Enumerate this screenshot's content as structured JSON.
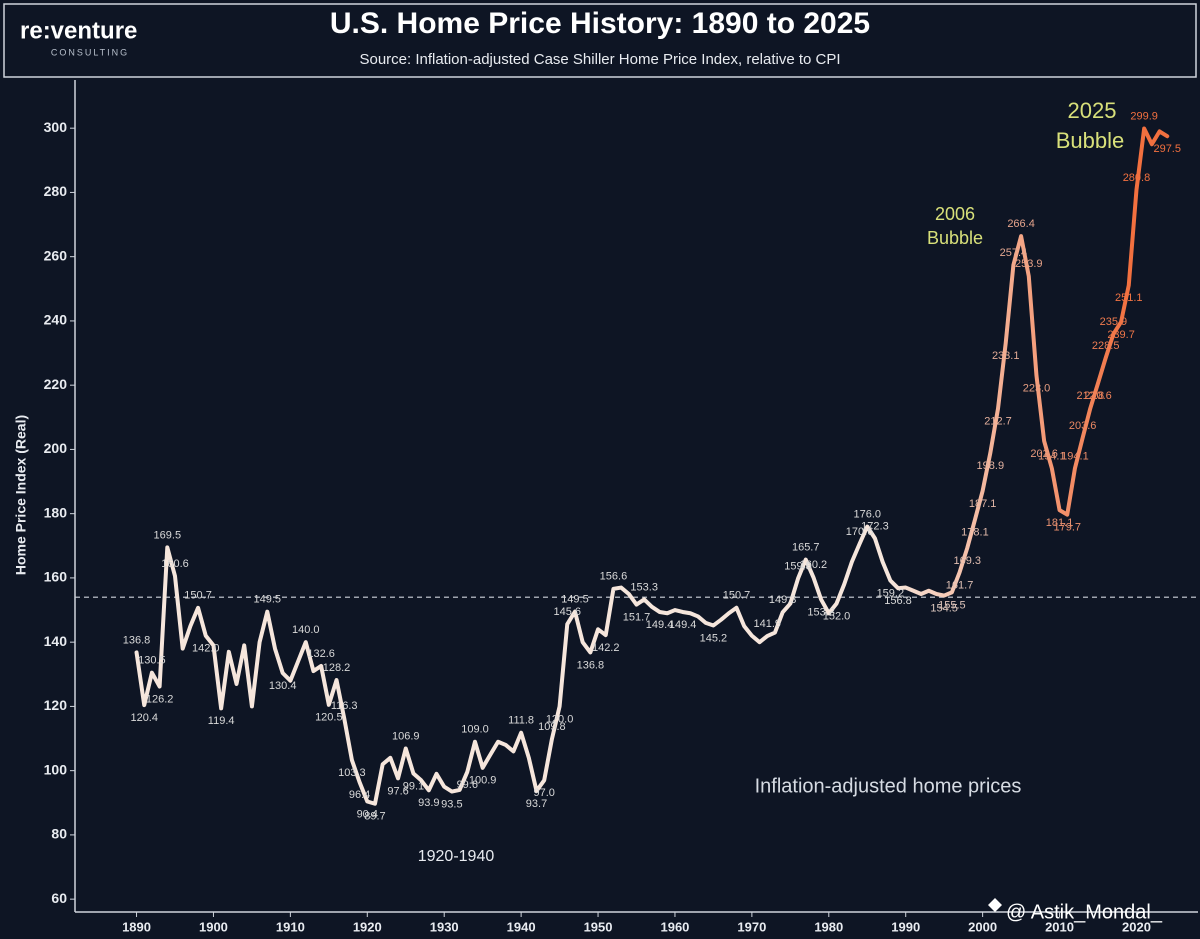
{
  "chart_data": {
    "type": "line",
    "title": "U.S. Home Price History: 1890 to 2025",
    "subtitle": "Source: Inflation-adjusted Case Shiller Home Price Index, relative to CPI",
    "brand": "re:venture",
    "brand_sub": "CONSULTING",
    "y_label": "Home Price Index (Real)",
    "watermark": "@ Astik_Mondal_",
    "annotations": {
      "bubble_2006": [
        "2006",
        "Bubble"
      ],
      "bubble_2025": [
        "2025",
        "Bubble"
      ],
      "era": "1920-1940",
      "series_label": "Inflation-adjusted home prices"
    },
    "line_colors": [
      "#f6e6dc",
      "#f2703f"
    ],
    "reference_line": 154,
    "xlim": [
      1882,
      2028
    ],
    "xticks": [
      1890,
      1900,
      1910,
      1920,
      1930,
      1940,
      1950,
      1960,
      1970,
      1980,
      1990,
      2000,
      2010,
      2020
    ],
    "ylim": [
      56,
      315
    ],
    "yticks": [
      60,
      80,
      100,
      120,
      140,
      160,
      180,
      200,
      220,
      240,
      260,
      280,
      300
    ],
    "x": [
      1890,
      1891,
      1892,
      1893,
      1894,
      1895,
      1896,
      1897,
      1898,
      1899,
      1900,
      1901,
      1902,
      1903,
      1904,
      1905,
      1906,
      1907,
      1908,
      1909,
      1910,
      1911,
      1912,
      1913,
      1914,
      1915,
      1916,
      1917,
      1918,
      1919,
      1920,
      1921,
      1922,
      1923,
      1924,
      1925,
      1926,
      1927,
      1928,
      1929,
      1930,
      1931,
      1932,
      1933,
      1934,
      1935,
      1936,
      1937,
      1938,
      1939,
      1940,
      1941,
      1942,
      1943,
      1944,
      1945,
      1946,
      1947,
      1948,
      1949,
      1950,
      1951,
      1952,
      1953,
      1954,
      1955,
      1956,
      1957,
      1958,
      1959,
      1960,
      1961,
      1962,
      1963,
      1964,
      1965,
      1966,
      1967,
      1968,
      1969,
      1970,
      1971,
      1972,
      1973,
      1974,
      1975,
      1976,
      1977,
      1978,
      1979,
      1980,
      1981,
      1982,
      1983,
      1984,
      1985,
      1986,
      1987,
      1988,
      1989,
      1990,
      1991,
      1992,
      1993,
      1994,
      1995,
      1996,
      1997,
      1998,
      1999,
      2000,
      2001,
      2002,
      2003,
      2004,
      2005,
      2006,
      2007,
      2008,
      2009,
      2010,
      2011,
      2012,
      2013,
      2014,
      2015,
      2016,
      2017,
      2018,
      2019,
      2020,
      2021,
      2022,
      2023,
      2024
    ],
    "values": [
      136.8,
      120.4,
      130.5,
      126.2,
      169.5,
      160.6,
      138,
      145,
      150.7,
      142.0,
      139,
      119.4,
      137,
      127,
      139,
      120,
      140,
      149.5,
      138,
      130.4,
      128,
      134,
      140.0,
      131,
      132.6,
      120.5,
      128.2,
      116.3,
      103.3,
      96.4,
      90.4,
      89.7,
      102,
      104,
      97.6,
      106.9,
      99.1,
      97,
      93.9,
      99,
      95,
      93.5,
      94,
      99.6,
      109.0,
      100.9,
      105,
      109,
      108,
      106,
      111.8,
      104,
      93.7,
      97.0,
      109.8,
      120.0,
      145.6,
      149.5,
      140,
      136.8,
      144,
      142.2,
      156.6,
      157,
      155,
      151.7,
      153.3,
      151,
      149.4,
      149,
      150,
      149.4,
      149,
      148,
      146,
      145.2,
      147,
      149,
      150.7,
      145,
      142,
      140,
      141.9,
      143,
      149.3,
      152,
      159.8,
      165.7,
      160.2,
      153.3,
      149,
      152.0,
      158,
      165,
      170.6,
      176.0,
      172.3,
      165,
      159.2,
      156.8,
      157,
      156,
      155,
      156,
      155,
      154.5,
      155.5,
      161.7,
      169.3,
      178.1,
      187.1,
      198.9,
      212.7,
      233.1,
      257.4,
      266.4,
      253.9,
      223.0,
      202.6,
      194.1,
      181.1,
      179.7,
      194.1,
      203.6,
      212.8,
      220.6,
      228.5,
      235.9,
      239.7,
      251.1,
      280.8,
      299.9,
      295,
      299,
      297.5
    ],
    "value_labels": [
      "136.8",
      "120.4",
      "130.5",
      "126.2",
      "169.5",
      "160.6",
      null,
      null,
      "150.7",
      "142.0",
      null,
      "119.4",
      null,
      null,
      null,
      null,
      null,
      "149.5",
      null,
      "130.4",
      null,
      null,
      "140.0",
      null,
      "132.6",
      "120.5",
      "128.2",
      "116.3",
      "103.3",
      "96.4",
      "90.4",
      "89.7",
      null,
      null,
      "97.6",
      "106.9",
      "99.1",
      null,
      "93.9",
      null,
      null,
      "93.5",
      null,
      "99.6",
      "109.0",
      "100.9",
      null,
      null,
      null,
      null,
      "111.8",
      null,
      "93.7",
      "97.0",
      "109.8",
      "120.0",
      "145.6",
      "149.5",
      null,
      "136.8",
      null,
      "142.2",
      "156.6",
      null,
      null,
      "151.7",
      "153.3",
      null,
      "149.4",
      null,
      null,
      "149.4",
      null,
      null,
      null,
      "145.2",
      null,
      null,
      "150.7",
      null,
      null,
      null,
      "141.9",
      null,
      "149.3",
      null,
      "159.8",
      "165.7",
      "160.2",
      "153.3",
      null,
      "152.0",
      null,
      null,
      "170.6",
      "176.0",
      "172.3",
      null,
      "159.2",
      "156.8",
      null,
      null,
      null,
      null,
      null,
      "154.5",
      "155.5",
      "161.7",
      "169.3",
      "178.1",
      "187.1",
      "198.9",
      "212.7",
      "233.1",
      "257.4",
      "266.4",
      "253.9",
      "223.0",
      "202.6",
      "194.1",
      "181.1",
      "179.7",
      "194.1",
      "203.6",
      "212.8",
      "220.6",
      "228.5",
      "235.9",
      "239.7",
      "251.1",
      "280.8",
      "299.9",
      null,
      null,
      "297.5"
    ]
  }
}
